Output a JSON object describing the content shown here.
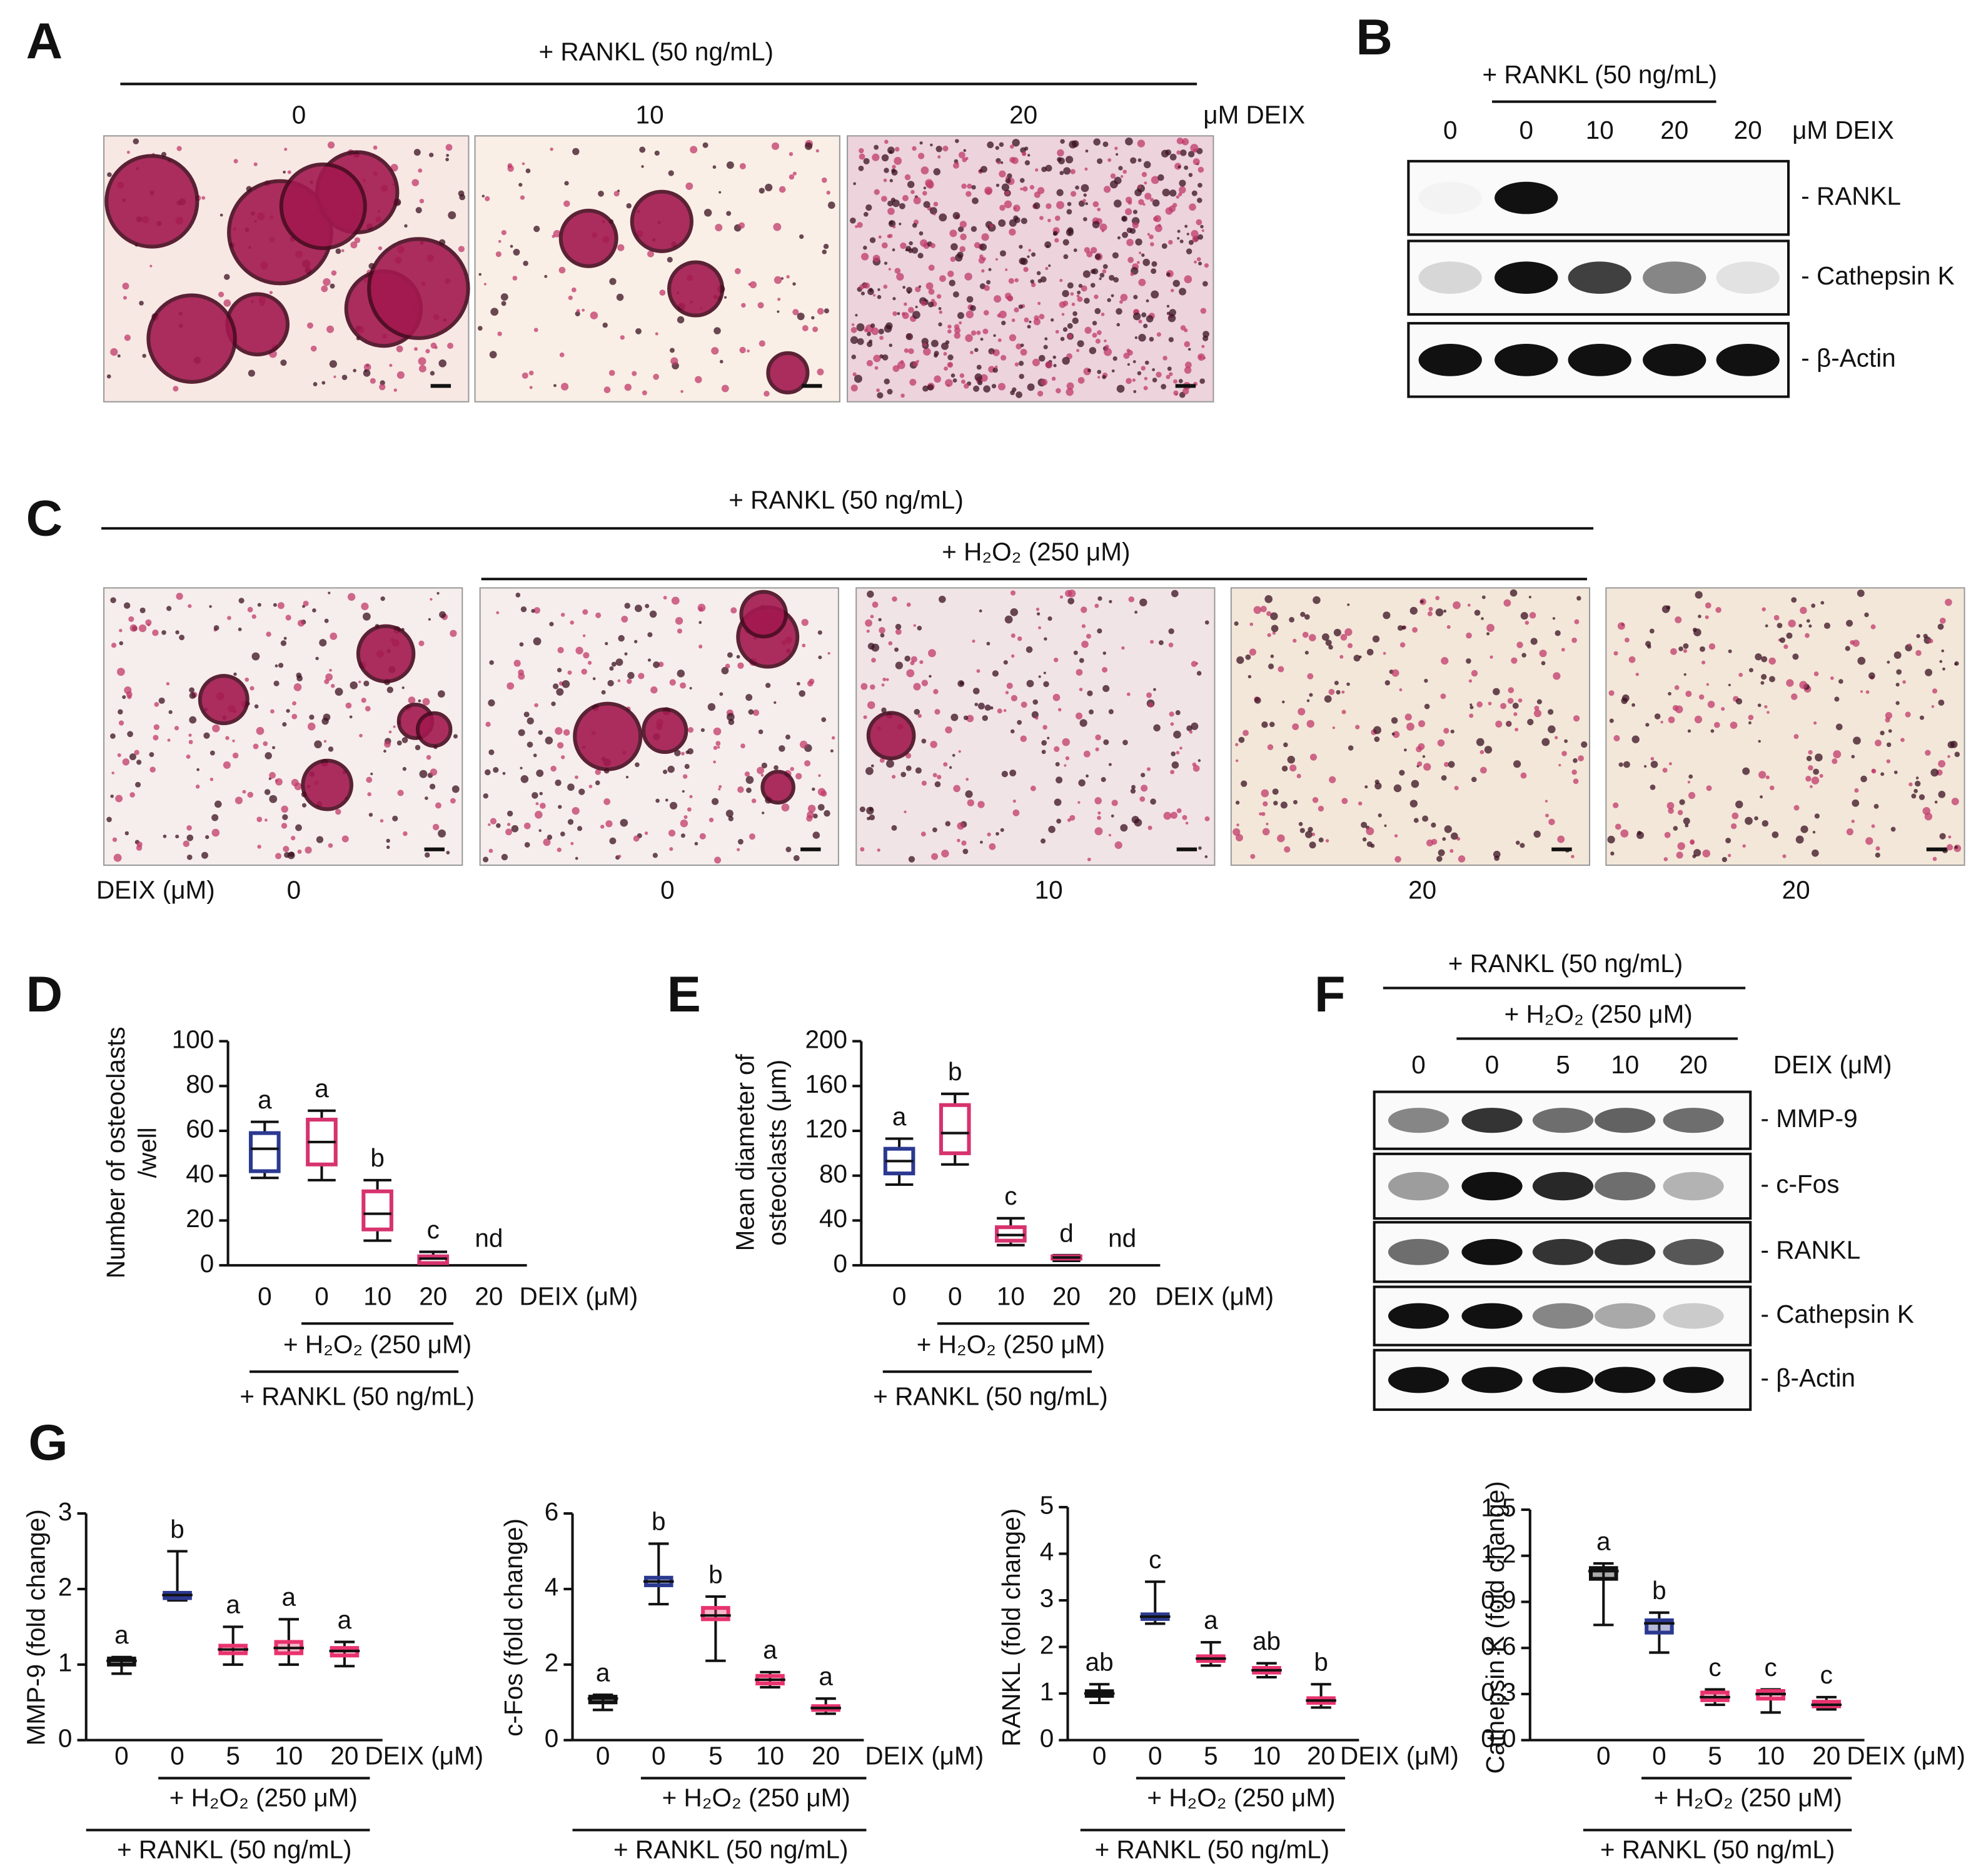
{
  "panel_labels": [
    "A",
    "B",
    "C",
    "D",
    "E",
    "F",
    "G"
  ],
  "panel_a": {
    "treatment": "+ RANKL (50 ng/mL)",
    "doses": [
      "0",
      "10",
      "20"
    ],
    "unit": "μM DEIX"
  },
  "panel_b": {
    "treatment": "+ RANKL (50 ng/mL)",
    "doses": [
      "0",
      "0",
      "10",
      "20",
      "20"
    ],
    "unit": "μM DEIX",
    "bands": [
      "- RANKL",
      "- Cathepsin K",
      "- β-Actin"
    ]
  },
  "panel_c": {
    "treatment": "+ RANKL (50 ng/mL)",
    "treatment2": "+ H₂O₂ (250 μM)",
    "row_label": "DEIX (μM)",
    "doses": [
      "0",
      "0",
      "10",
      "20",
      "20"
    ]
  },
  "panel_f": {
    "treatment": "+ RANKL (50 ng/mL)",
    "treatment2": "+ H₂O₂ (250 μM)",
    "doses": [
      "0",
      "0",
      "5",
      "10",
      "20"
    ],
    "unit": "DEIX (μM)",
    "bands": [
      "- MMP-9",
      "- c-Fos",
      "- RANKL",
      "- Cathepsin K",
      "- β-Actin"
    ]
  },
  "chart_data": [
    {
      "type": "box",
      "ylabel": [
        "Number of osteoclasts",
        "/well"
      ],
      "xlabel": "DEIX (μM)",
      "categories": [
        "0",
        "0",
        "10",
        "20",
        "20"
      ],
      "ylim": [
        0,
        100
      ],
      "yticks": [
        0,
        20,
        40,
        60,
        80,
        100
      ],
      "boxes": [
        {
          "min": 39,
          "q1": 42,
          "median": 52,
          "q3": 59,
          "max": 64,
          "color": "#2b3990"
        },
        {
          "min": 38,
          "q1": 45,
          "median": 55,
          "q3": 65,
          "max": 69,
          "color": "#d7336e"
        },
        {
          "min": 11,
          "q1": 16,
          "median": 23,
          "q3": 33,
          "max": 38,
          "color": "#d7336e"
        },
        {
          "min": 0,
          "q1": 1,
          "median": 3,
          "q3": 4,
          "max": 6,
          "color": "#d7336e"
        },
        null
      ],
      "letters": [
        "a",
        "a",
        "b",
        "c",
        "nd"
      ],
      "group_labels": [
        "+ H₂O₂ (250 μM)",
        "+ RANKL (50 ng/mL)"
      ]
    },
    {
      "type": "box",
      "ylabel": [
        "Mean diameter of",
        "osteoclasts (μm)"
      ],
      "xlabel": "DEIX (μM)",
      "categories": [
        "0",
        "0",
        "10",
        "20",
        "20"
      ],
      "ylim": [
        0,
        200
      ],
      "yticks": [
        0,
        40,
        80,
        120,
        160,
        200
      ],
      "boxes": [
        {
          "min": 72,
          "q1": 82,
          "median": 93,
          "q3": 104,
          "max": 113,
          "color": "#2b3990"
        },
        {
          "min": 90,
          "q1": 100,
          "median": 118,
          "q3": 143,
          "max": 153,
          "color": "#d7336e"
        },
        {
          "min": 18,
          "q1": 22,
          "median": 27,
          "q3": 34,
          "max": 42,
          "color": "#d7336e"
        },
        {
          "min": 4,
          "q1": 6,
          "median": 7,
          "q3": 8,
          "max": 9,
          "color": "#d7336e"
        },
        null
      ],
      "letters": [
        "a",
        "b",
        "c",
        "d",
        "nd"
      ],
      "group_labels": [
        "+ H₂O₂ (250 μM)",
        "+ RANKL (50 ng/mL)"
      ]
    },
    {
      "type": "box",
      "ylabel": [
        "MMP-9 (fold change)"
      ],
      "xlabel": "DEIX (μM)",
      "categories": [
        "0",
        "0",
        "5",
        "10",
        "20"
      ],
      "ylim": [
        0,
        3
      ],
      "yticks": [
        0,
        1,
        2,
        3
      ],
      "boxes": [
        {
          "min": 0.88,
          "q1": 1.0,
          "median": 1.05,
          "q3": 1.08,
          "max": 1.1,
          "color": "#111111"
        },
        {
          "min": 1.85,
          "q1": 1.88,
          "median": 1.92,
          "q3": 1.95,
          "max": 2.5,
          "color": "#2b3990"
        },
        {
          "min": 1.0,
          "q1": 1.15,
          "median": 1.2,
          "q3": 1.25,
          "max": 1.5,
          "color": "#e8336e"
        },
        {
          "min": 1.0,
          "q1": 1.15,
          "median": 1.22,
          "q3": 1.3,
          "max": 1.6,
          "color": "#e8336e"
        },
        {
          "min": 0.98,
          "q1": 1.12,
          "median": 1.18,
          "q3": 1.22,
          "max": 1.3,
          "color": "#e8336e"
        }
      ],
      "letters": [
        "a",
        "b",
        "a",
        "a",
        "a"
      ],
      "group_labels": [
        "+ H₂O₂ (250 μM)",
        "+ RANKL (50 ng/mL)"
      ]
    },
    {
      "type": "box",
      "ylabel": [
        "c-Fos (fold change)"
      ],
      "xlabel": "DEIX (μM)",
      "categories": [
        "0",
        "0",
        "5",
        "10",
        "20"
      ],
      "ylim": [
        0,
        6
      ],
      "yticks": [
        0,
        2,
        4,
        6
      ],
      "boxes": [
        {
          "min": 0.8,
          "q1": 1.0,
          "median": 1.1,
          "q3": 1.15,
          "max": 1.2,
          "color": "#111111"
        },
        {
          "min": 3.6,
          "q1": 4.1,
          "median": 4.2,
          "q3": 4.3,
          "max": 5.2,
          "color": "#2b3990"
        },
        {
          "min": 2.1,
          "q1": 3.2,
          "median": 3.3,
          "q3": 3.5,
          "max": 3.8,
          "color": "#e8336e"
        },
        {
          "min": 1.4,
          "q1": 1.5,
          "median": 1.6,
          "q3": 1.7,
          "max": 1.8,
          "color": "#e8336e"
        },
        {
          "min": 0.7,
          "q1": 0.8,
          "median": 0.85,
          "q3": 0.9,
          "max": 1.1,
          "color": "#e8336e"
        }
      ],
      "letters": [
        "a",
        "b",
        "b",
        "a",
        "a"
      ],
      "group_labels": [
        "+ H₂O₂ (250 μM)",
        "+ RANKL (50 ng/mL)"
      ]
    },
    {
      "type": "box",
      "ylabel": [
        "RANKL (fold change)"
      ],
      "xlabel": "DEIX (μM)",
      "categories": [
        "0",
        "0",
        "5",
        "10",
        "20"
      ],
      "ylim": [
        0,
        5
      ],
      "yticks": [
        0,
        1,
        2,
        3,
        4,
        5
      ],
      "boxes": [
        {
          "min": 0.8,
          "q1": 0.95,
          "median": 1.0,
          "q3": 1.05,
          "max": 1.2,
          "color": "#111111"
        },
        {
          "min": 2.5,
          "q1": 2.6,
          "median": 2.65,
          "q3": 2.7,
          "max": 3.4,
          "color": "#2b3990"
        },
        {
          "min": 1.6,
          "q1": 1.7,
          "median": 1.75,
          "q3": 1.8,
          "max": 2.1,
          "color": "#e8336e"
        },
        {
          "min": 1.35,
          "q1": 1.45,
          "median": 1.5,
          "q3": 1.55,
          "max": 1.65,
          "color": "#e8336e"
        },
        {
          "min": 0.7,
          "q1": 0.8,
          "median": 0.85,
          "q3": 0.9,
          "max": 1.2,
          "color": "#e8336e"
        }
      ],
      "letters": [
        "ab",
        "c",
        "a",
        "ab",
        "b"
      ],
      "group_labels": [
        "+ H₂O₂ (250 μM)",
        "+ RANKL (50 ng/mL)"
      ]
    },
    {
      "type": "box",
      "ylabel": [
        "Cathepsin K (fold change)"
      ],
      "xlabel": "DEIX (μM)",
      "categories": [
        "0",
        "0",
        "5",
        "10",
        "20"
      ],
      "ylim": [
        0,
        1.5
      ],
      "yticks": [
        {
          "value": 0,
          "label": "0.0"
        },
        0.3,
        0.6,
        0.9,
        1.2,
        1.5
      ],
      "boxes": [
        {
          "min": 0.75,
          "q1": 1.05,
          "median": 1.1,
          "q3": 1.12,
          "max": 1.15,
          "color": "#111111"
        },
        {
          "min": 0.57,
          "q1": 0.7,
          "median": 0.76,
          "q3": 0.78,
          "max": 0.83,
          "color": "#2b3990"
        },
        {
          "min": 0.23,
          "q1": 0.26,
          "median": 0.28,
          "q3": 0.31,
          "max": 0.33,
          "color": "#e8336e"
        },
        {
          "min": 0.18,
          "q1": 0.27,
          "median": 0.3,
          "q3": 0.32,
          "max": 0.33,
          "color": "#e8336e"
        },
        {
          "min": 0.2,
          "q1": 0.22,
          "median": 0.23,
          "q3": 0.25,
          "max": 0.28,
          "color": "#e8336e"
        }
      ],
      "letters": [
        "a",
        "b",
        "c",
        "c",
        "c"
      ],
      "group_labels": [
        "+ H₂O₂ (250 μM)",
        "+ RANKL (50 ng/mL)"
      ]
    }
  ]
}
